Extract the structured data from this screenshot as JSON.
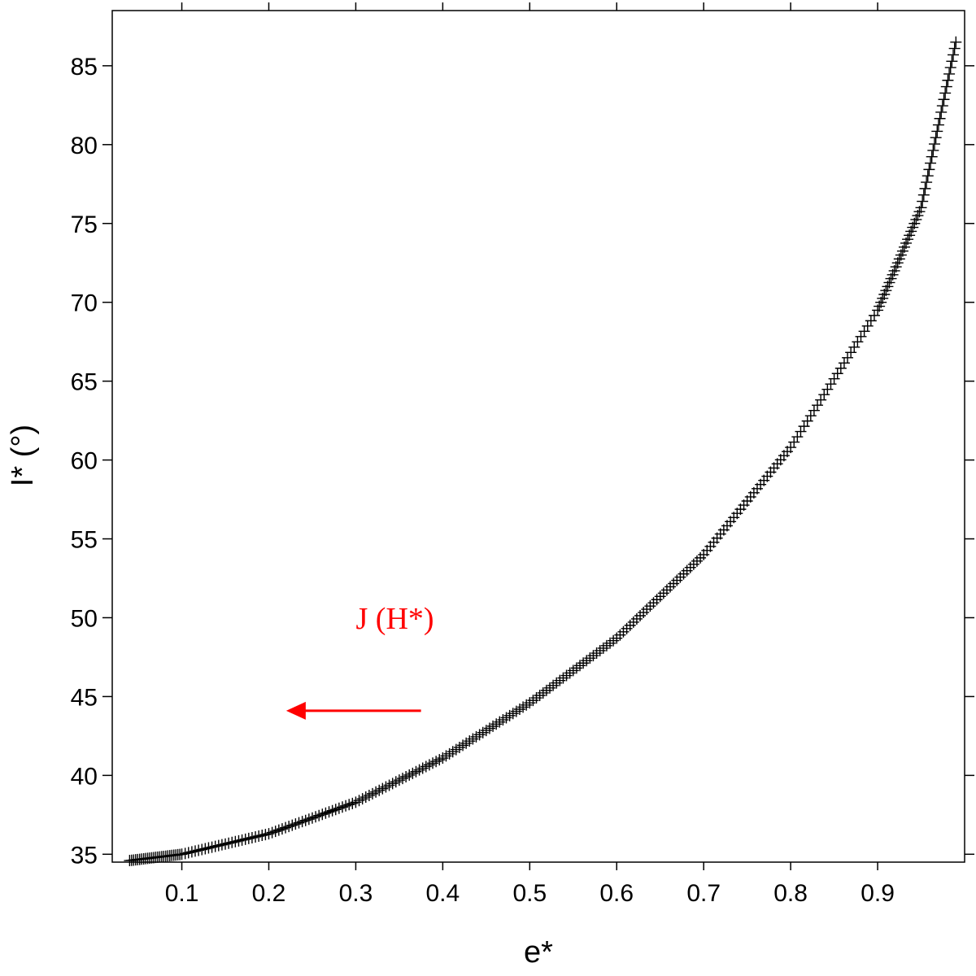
{
  "chart_data": {
    "type": "scatter",
    "marker": "plus",
    "title": "",
    "xlabel": "e*",
    "ylabel": "I* (°)",
    "xlim": [
      0.02,
      1.0
    ],
    "ylim": [
      34.5,
      88.5
    ],
    "xticks": [
      0.1,
      0.2,
      0.3,
      0.4,
      0.5,
      0.6,
      0.7,
      0.8,
      0.9
    ],
    "xtick_labels": [
      "0.1",
      "0.2",
      "0.3",
      "0.4",
      "0.5",
      "0.6",
      "0.7",
      "0.8",
      "0.9"
    ],
    "yticks": [
      35,
      40,
      45,
      50,
      55,
      60,
      65,
      70,
      75,
      80,
      85
    ],
    "ytick_labels": [
      "35",
      "40",
      "45",
      "50",
      "55",
      "60",
      "65",
      "70",
      "75",
      "80",
      "85"
    ],
    "grid": false,
    "series": [
      {
        "color": "#000000",
        "x": [
          0.04,
          0.1,
          0.2,
          0.3,
          0.4,
          0.5,
          0.6,
          0.7,
          0.8,
          0.9,
          0.95,
          0.99
        ],
        "y": [
          34.6,
          35.0,
          36.3,
          38.3,
          41.1,
          44.6,
          48.7,
          54.0,
          60.8,
          69.5,
          76.0,
          86.5
        ]
      }
    ],
    "annotations": [
      {
        "text": "J (H*)",
        "color": "#ff0000",
        "x": 0.345,
        "y": 49.3
      }
    ],
    "arrows": [
      {
        "color": "#ff0000",
        "direction": "left",
        "x_from": 0.375,
        "x_to": 0.22,
        "y": 44.1
      }
    ]
  }
}
